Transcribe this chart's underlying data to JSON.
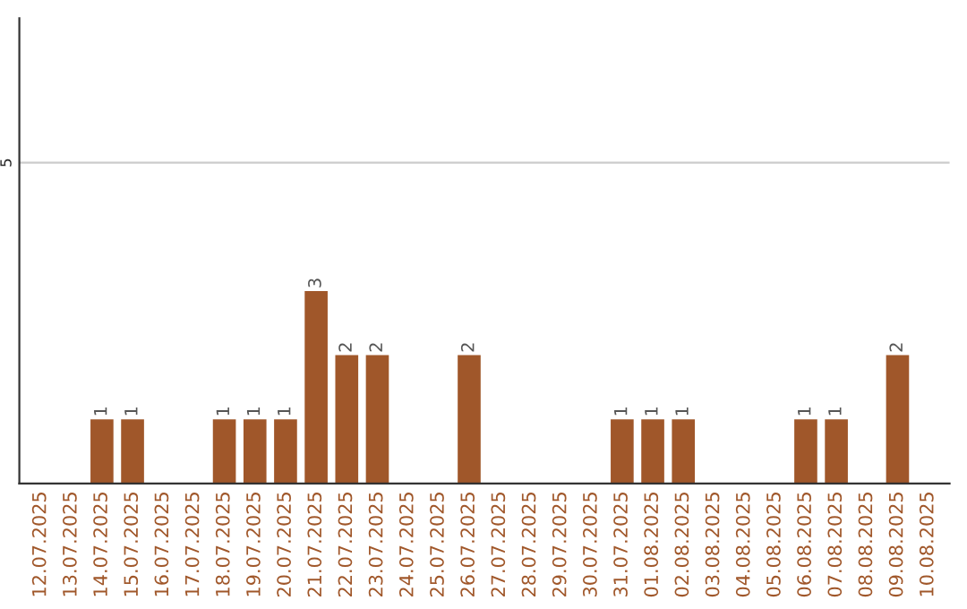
{
  "chart_data": {
    "type": "bar",
    "categories": [
      "12.07.2025",
      "13.07.2025",
      "14.07.2025",
      "15.07.2025",
      "16.07.2025",
      "17.07.2025",
      "18.07.2025",
      "19.07.2025",
      "20.07.2025",
      "21.07.2025",
      "22.07.2025",
      "23.07.2025",
      "24.07.2025",
      "25.07.2025",
      "26.07.2025",
      "27.07.2025",
      "28.07.2025",
      "29.07.2025",
      "30.07.2025",
      "31.07.2025",
      "01.08.2025",
      "02.08.2025",
      "03.08.2025",
      "04.08.2025",
      "05.08.2025",
      "06.08.2025",
      "07.08.2025",
      "08.08.2025",
      "09.08.2025",
      "10.08.2025"
    ],
    "values": [
      null,
      null,
      1,
      1,
      null,
      null,
      1,
      1,
      1,
      3,
      2,
      2,
      null,
      null,
      2,
      null,
      null,
      null,
      null,
      1,
      1,
      1,
      null,
      null,
      null,
      1,
      1,
      null,
      2,
      null
    ],
    "value_labels": [
      null,
      null,
      "1",
      "1",
      null,
      null,
      "1",
      "1",
      "1",
      "3",
      "2",
      "2",
      null,
      null,
      "2",
      null,
      null,
      null,
      null,
      "1",
      "1",
      "1",
      null,
      null,
      null,
      "1",
      "1",
      null,
      "2",
      null
    ],
    "color": "#a0572a",
    "ylim": [
      0,
      7.25
    ],
    "yticks": [
      5
    ],
    "grid": "y"
  }
}
